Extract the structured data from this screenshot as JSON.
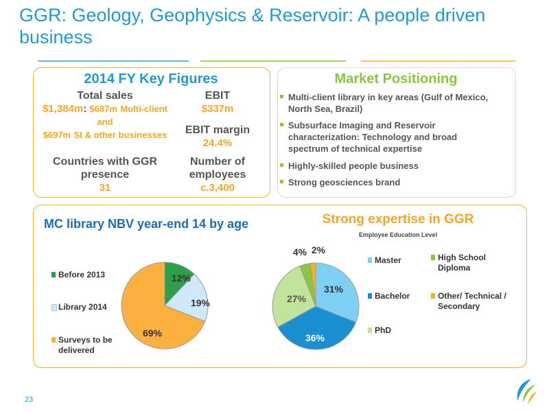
{
  "title": "GGR: Geology, Geophysics & Reservoir: A people driven business",
  "colors": {
    "blue": "#1f9bd2",
    "green": "#8cc63f",
    "orange": "#f5b229"
  },
  "key_figures": {
    "title": "2014 FY Key Figures",
    "total_sales_label": "Total sales",
    "total_sales_value": "$1,384m",
    "mc_value": "$687m",
    "mc_text": "Multi-client and",
    "si_value": "$697m",
    "si_text": "SI & other businesses",
    "countries_label": "Countries with GGR presence",
    "countries_value": "31",
    "ebit_label": "EBIT",
    "ebit_value": "$337m",
    "ebit_margin_label": "EBIT margin",
    "ebit_margin_value": "24.4%",
    "employees_label": "Number of employees",
    "employees_value": "c.3,400"
  },
  "market": {
    "title": "Market Positioning",
    "bullets": [
      "Multi-client library in key areas (Gulf of Mexico, North Sea, Brazil)",
      "Subsurface Imaging and Reservoir characterization: Technology and broad spectrum of technical expertise",
      "Highly-skilled people business",
      "Strong geosciences brand"
    ]
  },
  "mc_library": {
    "title": "MC library NBV year-end 14 by age"
  },
  "expertise": {
    "title": "Strong expertise in GGR",
    "subtitle": "Employee Education Level"
  },
  "chart_data": [
    {
      "type": "pie",
      "title": "MC library NBV year-end 14 by age",
      "categories": [
        "Before 2013",
        "Library 2014",
        "Surveys to be delivered"
      ],
      "values": [
        12,
        19,
        69
      ],
      "labels": [
        "12%",
        "19%",
        "69%"
      ],
      "colors": [
        "#2e9e48",
        "#cfe9fa",
        "#fbb040"
      ],
      "legend": "left"
    },
    {
      "type": "pie",
      "title": "Employee Education Level",
      "categories": [
        "Master",
        "Bachelor",
        "PhD",
        "High School Diploma",
        "Other/ Technical / Secondary"
      ],
      "values": [
        31,
        36,
        27,
        4,
        2
      ],
      "labels": [
        "31%",
        "36%",
        "27%",
        "4%",
        "2%"
      ],
      "colors": [
        "#7fd0f5",
        "#1a8fd1",
        "#c2e39b",
        "#8cc63f",
        "#f5b229"
      ],
      "legend": "right"
    }
  ],
  "page_number": "23"
}
